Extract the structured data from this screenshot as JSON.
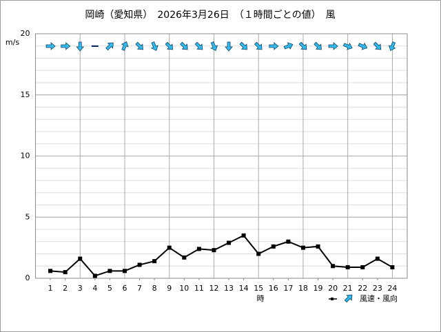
{
  "chart_data": {
    "type": "line",
    "title": "岡崎（愛知県）　2026年3月26日　（１時間ごとの値）　風",
    "y_label": "m/s",
    "x_label": "時",
    "legend_label": "風速・風向",
    "x": [
      1,
      2,
      3,
      4,
      5,
      6,
      7,
      8,
      9,
      10,
      11,
      12,
      13,
      14,
      15,
      16,
      17,
      18,
      19,
      20,
      21,
      22,
      23,
      24
    ],
    "series": [
      {
        "name": "風速",
        "color": "#000000",
        "values": [
          0.6,
          0.5,
          1.6,
          0.2,
          0.6,
          0.6,
          1.1,
          1.4,
          2.5,
          1.7,
          2.4,
          2.3,
          2.9,
          3.5,
          2.0,
          2.6,
          3.0,
          2.5,
          2.6,
          1.0,
          0.9,
          0.9,
          1.6,
          0.9
        ]
      }
    ],
    "wind_from_deg": [
      270,
      270,
      0,
      null,
      225,
      202.5,
      315,
      337.5,
      315,
      315,
      315,
      337.5,
      0,
      315,
      315,
      270,
      247.5,
      315,
      315,
      270,
      292.5,
      292.5,
      315,
      22.5
    ],
    "arrow_color": "#33bbee",
    "xlim": [
      0,
      25
    ],
    "xticks": [
      1,
      2,
      3,
      4,
      5,
      6,
      7,
      8,
      9,
      10,
      11,
      12,
      13,
      14,
      15,
      16,
      17,
      18,
      19,
      20,
      21,
      22,
      23,
      24
    ],
    "ylim": [
      0,
      20
    ],
    "yticks": [
      0,
      5,
      10,
      15,
      20
    ],
    "minor_grid_step": 1,
    "grid": true
  }
}
